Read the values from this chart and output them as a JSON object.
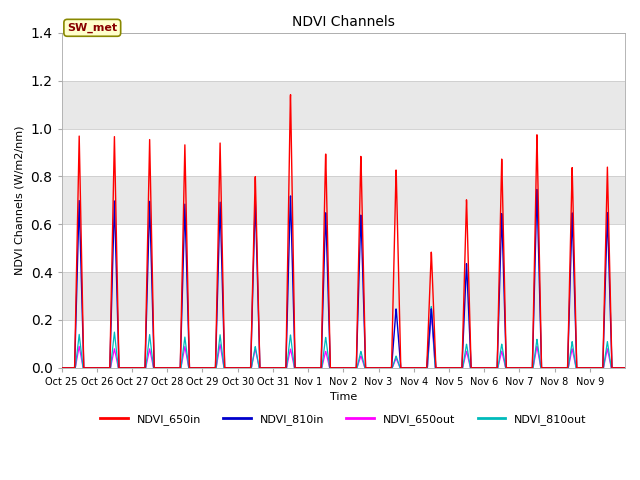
{
  "title": "NDVI Channels",
  "xlabel": "Time",
  "ylabel": "NDVI Channels (W/m2/nm)",
  "ylim": [
    0,
    1.4
  ],
  "figsize": [
    6.4,
    4.8
  ],
  "dpi": 100,
  "series": {
    "NDVI_650in": {
      "color": "#ff0000",
      "lw": 1.0
    },
    "NDVI_810in": {
      "color": "#0000cc",
      "lw": 1.0
    },
    "NDVI_650out": {
      "color": "#ff00ff",
      "lw": 0.9
    },
    "NDVI_810out": {
      "color": "#00bbbb",
      "lw": 0.9
    }
  },
  "tick_labels": [
    "Oct 25",
    "Oct 26",
    "Oct 27",
    "Oct 28",
    "Oct 29",
    "Oct 30",
    "Oct 31",
    "Nov 1",
    "Nov 2",
    "Nov 3",
    "Nov 4",
    "Nov 5",
    "Nov 6",
    "Nov 7",
    "Nov 8",
    "Nov 9"
  ],
  "annotation_text": "SW_met",
  "annotation_facecolor": "#ffffcc",
  "annotation_edgecolor": "#888800",
  "annotation_textcolor": "#880000",
  "peaks_650in": [
    0.97,
    0.97,
    0.96,
    0.94,
    0.95,
    0.81,
    1.16,
    0.91,
    0.9,
    0.84,
    0.49,
    0.71,
    0.88,
    0.98,
    0.84,
    0.84
  ],
  "peaks_810in": [
    0.7,
    0.7,
    0.7,
    0.69,
    0.7,
    0.71,
    0.73,
    0.66,
    0.65,
    0.25,
    0.25,
    0.44,
    0.65,
    0.75,
    0.65,
    0.65
  ],
  "peaks_650out": [
    0.09,
    0.08,
    0.08,
    0.09,
    0.1,
    0.08,
    0.08,
    0.07,
    0.05,
    0.04,
    0.23,
    0.07,
    0.07,
    0.09,
    0.08,
    0.08
  ],
  "peaks_810out": [
    0.14,
    0.15,
    0.14,
    0.13,
    0.14,
    0.09,
    0.14,
    0.13,
    0.07,
    0.05,
    0.26,
    0.1,
    0.1,
    0.12,
    0.11,
    0.11
  ],
  "band_colors": [
    "#ffffff",
    "#e8e8e8"
  ],
  "yticks": [
    0.0,
    0.2,
    0.4,
    0.6,
    0.8,
    1.0,
    1.2,
    1.4
  ]
}
